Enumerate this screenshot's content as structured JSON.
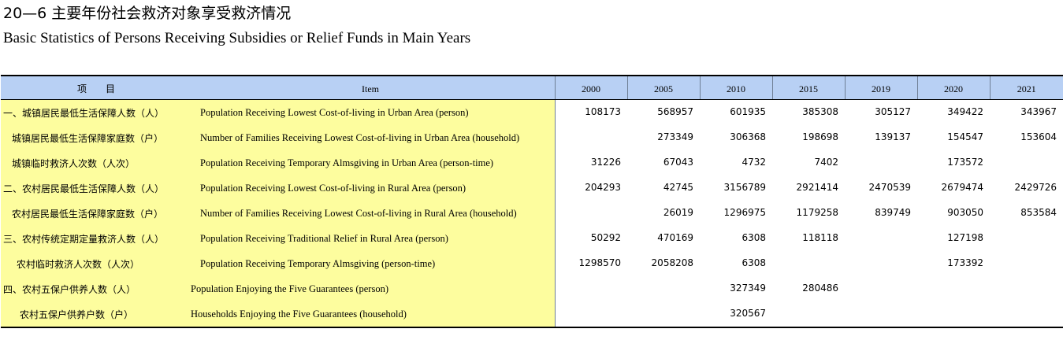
{
  "title_cn": "20—6 主要年份社会救济对象享受救济情况",
  "title_en": "Basic Statistics of Persons Receiving Subsidies or Relief Funds in Main Years",
  "header": {
    "item_cn": "项　　目",
    "item_en": "Item",
    "years": [
      "2000",
      "2005",
      "2010",
      "2015",
      "2019",
      "2020",
      "2021"
    ]
  },
  "rows": [
    {
      "cn": "一、城镇居民最低生活保障人数（人）",
      "en": "Population Receiving Lowest Cost-of-living in Urban Area (person)",
      "values": [
        "108173",
        "568957",
        "601935",
        "385308",
        "305127",
        "349422",
        "343967"
      ]
    },
    {
      "cn": "城镇居民最低生活保障家庭数（户）",
      "en": "Number of Families Receiving Lowest Cost-of-living in Urban Area (household)",
      "values": [
        "",
        "273349",
        "306368",
        "198698",
        "139137",
        "154547",
        "153604"
      ]
    },
    {
      "cn": "城镇临时救济人次数（人次）",
      "en": "Population Receiving Temporary Almsgiving in Urban Area (person-time)",
      "values": [
        "31226",
        "67043",
        "4732",
        "7402",
        "",
        "173572",
        ""
      ]
    },
    {
      "cn": "二、农村居民最低生活保障人数（人）",
      "en": "Population Receiving Lowest Cost-of-living in Rural Area (person)",
      "values": [
        "204293",
        "42745",
        "3156789",
        "2921414",
        "2470539",
        "2679474",
        "2429726"
      ]
    },
    {
      "cn": "农村居民最低生活保障家庭数（户）",
      "en": "Number of Families Receiving Lowest Cost-of-living in Rural Area (household)",
      "values": [
        "",
        "26019",
        "1296975",
        "1179258",
        "839749",
        "903050",
        "853584"
      ]
    },
    {
      "cn": "三、农村传统定期定量救济人数（人）",
      "en": "Population Receiving Traditional Relief in Rural Area (person)",
      "values": [
        "50292",
        "470169",
        "6308",
        "118118",
        "",
        "127198",
        ""
      ]
    },
    {
      "cn": "农村临时救济人次数（人次）",
      "en": "Population Receiving Temporary Almsgiving (person-time)",
      "values": [
        "1298570",
        "2058208",
        "6308",
        "",
        "",
        "173392",
        ""
      ]
    },
    {
      "cn": "四、农村五保户供养人数（人）",
      "en": "Population Enjoying the Five Guarantees (person)",
      "values": [
        "",
        "",
        "327349",
        "280486",
        "",
        "",
        ""
      ]
    },
    {
      "cn": "农村五保户供养户数（户）",
      "en": "Households Enjoying the Five Guarantees (household)",
      "values": [
        "",
        "",
        "320567",
        "",
        "",
        "",
        ""
      ]
    }
  ]
}
